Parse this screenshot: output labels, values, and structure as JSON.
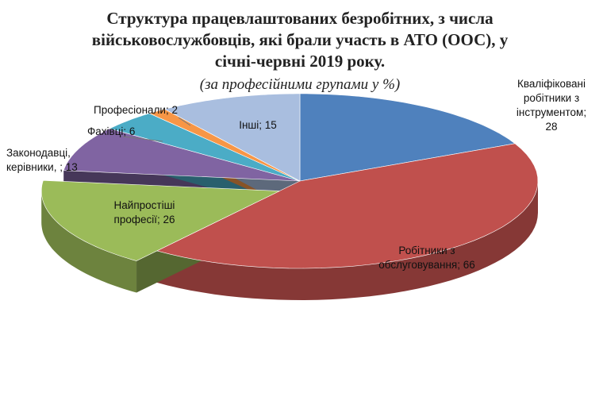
{
  "chart_data": {
    "type": "pie3d",
    "title": [
      "Структура працевлаштованих безробітних, з числа",
      "військовослужбовців, які брали участь в АТО (ООС), у",
      "січні-червні 2019 року."
    ],
    "subtitle": "(за професійними групами  у %)",
    "categories": [
      [
        "Кваліфіковані",
        "робітники з",
        "інструментом;",
        "28"
      ],
      [
        "Робітники з",
        "обслуговування; 66"
      ],
      [
        "Найпростіші",
        "професії; 26"
      ],
      [
        "Законодавці,",
        "керівники, ; 13"
      ],
      [
        "Фахівці; 6"
      ],
      [
        "Професіонали; 2"
      ],
      [
        "Інші; 15"
      ]
    ],
    "values": [
      28,
      66,
      26,
      13,
      6,
      2,
      15
    ],
    "colors": [
      "#4f81bd",
      "#c0504d",
      "#9bbb59",
      "#8064a2",
      "#4bacc6",
      "#f79646",
      "#a9bedf"
    ]
  }
}
